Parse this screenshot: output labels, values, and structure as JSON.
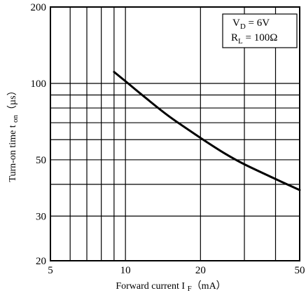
{
  "chart_data": {
    "type": "line",
    "title": "",
    "xlabel": "Forward current I",
    "xlabel_sub": "F",
    "xlabel_unit": "（mA）",
    "ylabel": "Turn-on time t",
    "ylabel_sub": "on",
    "ylabel_unit": "（µs）",
    "x_scale": "log",
    "y_scale": "log",
    "xlim": [
      5,
      50
    ],
    "ylim": [
      20,
      200
    ],
    "x_ticks": [
      5,
      10,
      20,
      50
    ],
    "y_ticks": [
      20,
      30,
      50,
      100,
      200
    ],
    "x_gridlines": [
      5,
      6,
      7,
      8,
      9,
      10,
      20,
      30,
      40,
      50
    ],
    "y_gridlines": [
      20,
      30,
      40,
      50,
      60,
      70,
      80,
      90,
      100,
      200
    ],
    "grid": true,
    "legend": "none",
    "annotations": {
      "vd_label": "V",
      "vd_sub": "D",
      "vd_value": " = 6V",
      "rl_label": "R",
      "rl_sub": "L",
      "rl_value": " = 100Ω"
    },
    "series": [
      {
        "x": [
          9,
          10,
          12,
          15,
          20,
          25,
          30,
          40,
          50
        ],
        "y": [
          111,
          102,
          88,
          74,
          61,
          53,
          48,
          42,
          38
        ]
      }
    ]
  }
}
